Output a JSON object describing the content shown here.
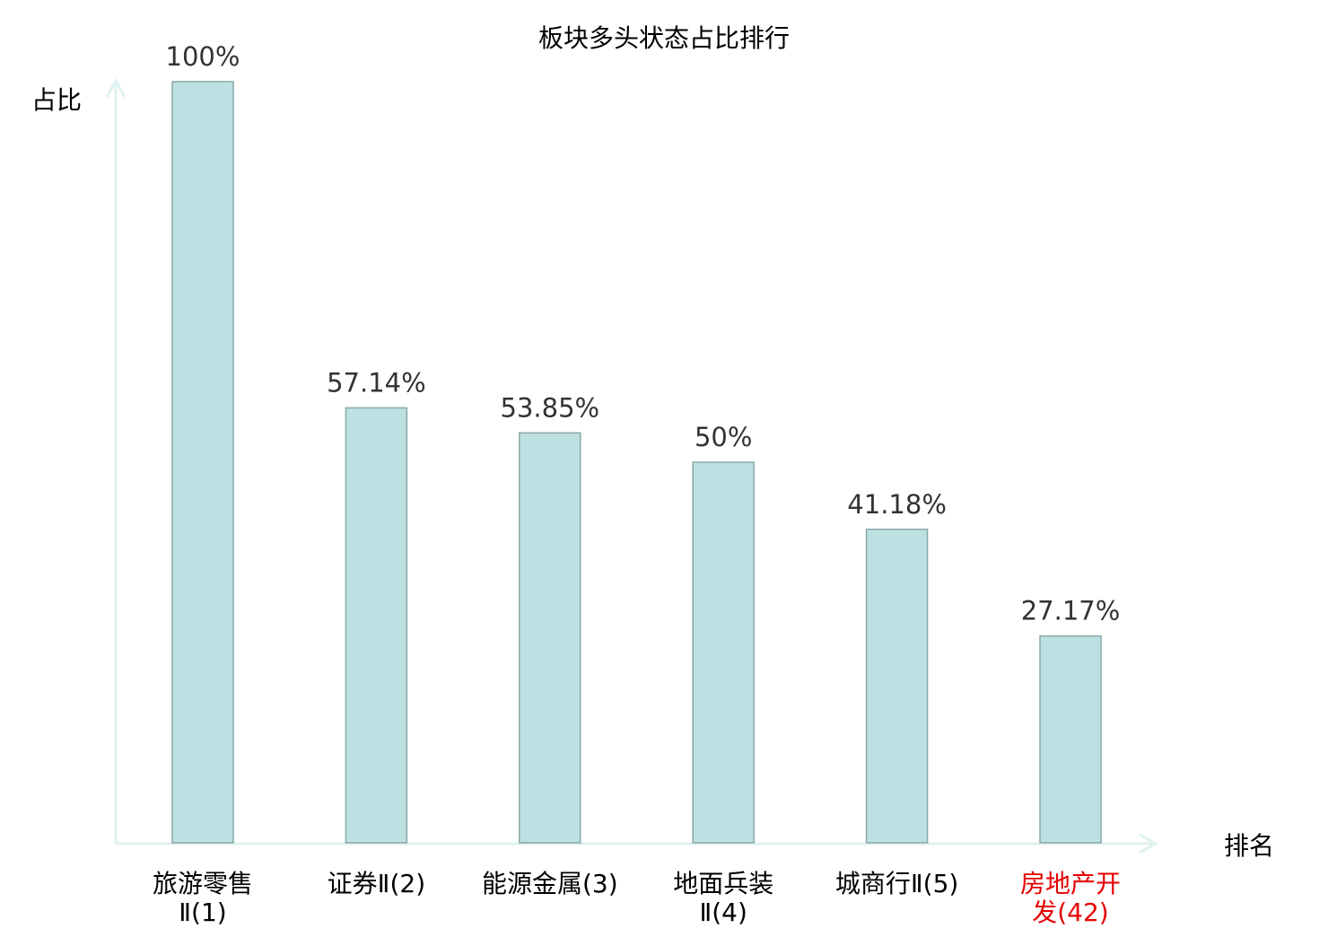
{
  "chart_data": {
    "type": "bar",
    "title": "板块多头状态占比排行",
    "ylabel": "占比",
    "xlabel": "排名",
    "categories": [
      "旅游零售Ⅱ(1)",
      "证券Ⅱ(2)",
      "能源金属(3)",
      "地面兵装Ⅱ(4)",
      "城商行Ⅱ(5)",
      "房地产开发(42)"
    ],
    "values": [
      100,
      57.14,
      53.85,
      50,
      41.18,
      27.17
    ],
    "data_labels": [
      "100%",
      "57.14%",
      "53.85%",
      "50%",
      "41.18%",
      "27.17%"
    ],
    "ylim": [
      0,
      100
    ],
    "grid": false,
    "highlighted_category": "房地产开发(42)",
    "colors": {
      "bar_fill": "#bde0e3",
      "bar_stroke": "#8aa8a8",
      "axis": "#dff2ef",
      "label": "#000000",
      "data_label": "#333333",
      "highlight_label": "#e60000"
    }
  }
}
